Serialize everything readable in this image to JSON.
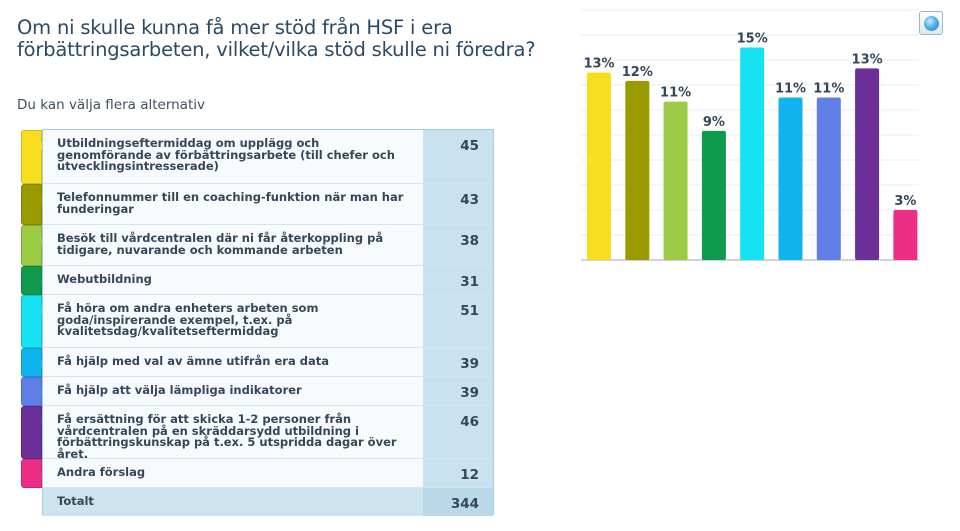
{
  "question": "Om ni skulle kunna få mer stöd från HSF i era förbättringsarbeten, vilket/vilka stöd skulle ni föredra?",
  "subtitle": "Du kan välja flera alternativ",
  "chart_button_icon": "pie-chart-icon",
  "table": {
    "total_label": "Totalt",
    "total_value": "344"
  },
  "chart_data": {
    "type": "bar",
    "categories": [
      "Utbildningseftermiddag om upplägg och genomförande av förbättringsarbete (till chefer och utvecklingsintresserade)",
      "Telefonnummer till en coaching-funktion när man har funderingar",
      "Besök till vårdcentralen där ni får återkoppling på tidigare, nuvarande och kommande arbeten",
      "Webutbildning",
      "Få höra om andra enheters arbeten som goda/inspirerande exempel, t.ex. på kvalitetsdag/kvalitetseftermiddag",
      "Få hjälp med val av ämne utifrån era data",
      "Få hjälp att välja lämpliga indikatorer",
      "Få ersättning för att skicka 1-2 personer från vårdcentralen på en skräddarsydd utbildning i förbättringskunskap på t.ex. 5 utspridda dagar över året.",
      "Andra förslag"
    ],
    "values": [
      45,
      43,
      38,
      31,
      51,
      39,
      39,
      46,
      12
    ],
    "percent_labels": [
      "13%",
      "12%",
      "11%",
      "9%",
      "15%",
      "11%",
      "11%",
      "13%",
      "3%"
    ],
    "colors": [
      "#f7de1e",
      "#999a00",
      "#9ccb46",
      "#0f9a4e",
      "#17e2f2",
      "#0fb4ef",
      "#5f7fe6",
      "#6a3098",
      "#ee2d87"
    ],
    "ylim": [
      0,
      60
    ],
    "grid": true,
    "legend": "none"
  }
}
